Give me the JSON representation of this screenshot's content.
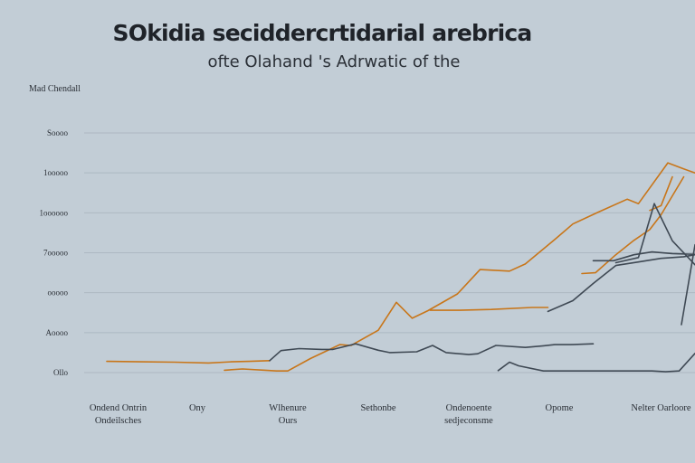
{
  "chart_data": {
    "type": "line",
    "title": "SOkidia seciddercrtidarial arebrica",
    "subtitle": "ofte Olahand 's Adrwatic of the",
    "ylabel": "Mad Chendall",
    "xlabel": "",
    "ylim": [
      0,
      6
    ],
    "y_ticks": [
      {
        "value": 0,
        "label": "Ollo"
      },
      {
        "value": 1,
        "label": "Aoooo"
      },
      {
        "value": 2,
        "label": "ooooo"
      },
      {
        "value": 3,
        "label": "7ooooo"
      },
      {
        "value": 4,
        "label": "1oooooo"
      },
      {
        "value": 5,
        "label": "1ooooo"
      },
      {
        "value": 6,
        "label": "Soooo"
      }
    ],
    "x_ticks": [
      {
        "x": 1.5,
        "lines": [
          "Ondend Ontrin",
          "Ondeilsches"
        ]
      },
      {
        "x": 5,
        "lines": [
          "Ony"
        ]
      },
      {
        "x": 9,
        "lines": [
          "Wlhenure",
          "Ours"
        ]
      },
      {
        "x": 13,
        "lines": [
          "Sethonbe"
        ]
      },
      {
        "x": 17,
        "lines": [
          "Ondenoente",
          "sedjeconsme"
        ]
      },
      {
        "x": 21,
        "lines": [
          "Opome"
        ]
      },
      {
        "x": 25.5,
        "lines": [
          "Nelter Oarloore"
        ]
      }
    ],
    "xlim": [
      0,
      27
    ],
    "grid": true,
    "series": [
      {
        "color": "#c8761a",
        "segments": [
          {
            "x": [
              1,
              2.5,
              4,
              5.5,
              6.5,
              7.3,
              8.2
            ],
            "y": [
              0.28,
              0.27,
              0.26,
              0.24,
              0.27,
              0.28,
              0.3
            ]
          },
          {
            "x": [
              6.2,
              7,
              8,
              8.5,
              9,
              10,
              11.3,
              11.8,
              13,
              13.8,
              14.5,
              15.2,
              16.5,
              17.5,
              18.8,
              19.5,
              20.8,
              21.6,
              22.7,
              24,
              24.5,
              25.8,
              26.5,
              27
            ],
            "y": [
              0.06,
              0.09,
              0.06,
              0.04,
              0.04,
              0.35,
              0.7,
              0.68,
              1.06,
              1.76,
              1.36,
              1.55,
              1.97,
              2.58,
              2.54,
              2.72,
              3.33,
              3.72,
              4.01,
              4.34,
              4.23,
              5.25,
              5.1,
              5.0
            ]
          },
          {
            "x": [
              15.3,
              16.5,
              18,
              19.8,
              20.5
            ],
            "y": [
              1.56,
              1.56,
              1.58,
              1.63,
              1.63
            ]
          },
          {
            "x": [
              22,
              22.6,
              23.5,
              24.3,
              25,
              25.5,
              26.5
            ],
            "y": [
              2.48,
              2.5,
              2.95,
              3.31,
              3.58,
              3.95,
              4.9
            ]
          },
          {
            "x": [
              25,
              25.5,
              26
            ],
            "y": [
              4.06,
              4.18,
              4.9
            ]
          }
        ]
      },
      {
        "color": "#3f4954",
        "segments": [
          {
            "x": [
              8.2,
              8.7,
              9.5,
              10.5,
              11,
              12,
              13,
              13.5,
              14.7,
              15.4,
              16,
              17,
              17.4,
              18.2,
              19.5,
              20.3,
              20.8,
              21.5,
              22.5
            ],
            "y": [
              0.3,
              0.55,
              0.6,
              0.58,
              0.58,
              0.72,
              0.56,
              0.5,
              0.52,
              0.68,
              0.5,
              0.45,
              0.47,
              0.68,
              0.63,
              0.67,
              0.7,
              0.7,
              0.72
            ]
          },
          {
            "x": [
              18.3,
              18.8,
              19.2,
              20.3,
              21,
              22.5,
              23.5,
              24.3,
              25.1,
              25.7,
              26.3,
              27
            ],
            "y": [
              0.05,
              0.26,
              0.17,
              0.04,
              0.04,
              0.04,
              0.04,
              0.04,
              0.04,
              0.02,
              0.04,
              0.48
            ]
          },
          {
            "x": [
              20.5,
              21.6,
              22.5,
              23.5,
              24.5,
              25.5,
              26.5,
              27
            ],
            "y": [
              1.53,
              1.8,
              2.23,
              2.68,
              2.77,
              2.86,
              2.9,
              2.95
            ]
          },
          {
            "x": [
              22.5,
              23.4,
              24.3,
              25.1,
              26,
              27
            ],
            "y": [
              2.8,
              2.8,
              2.95,
              3.02,
              2.98,
              2.96
            ]
          },
          {
            "x": [
              23.5,
              24.5,
              25.2,
              26,
              27
            ],
            "y": [
              2.75,
              2.88,
              4.23,
              3.3,
              2.7
            ]
          },
          {
            "x": [
              26.4,
              27
            ],
            "y": [
              1.2,
              3.2
            ]
          }
        ]
      }
    ]
  }
}
